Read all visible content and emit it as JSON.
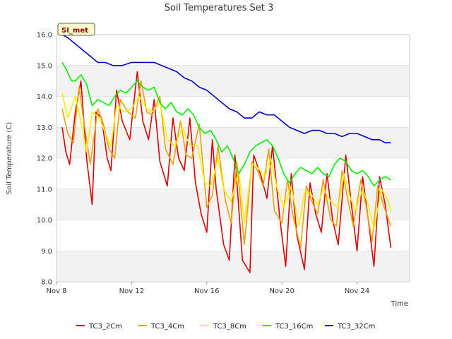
{
  "chart_data": {
    "type": "line",
    "title": "Soil Temperatures Set 3",
    "xlabel": "Time",
    "ylabel": "Soil Temperature (C)",
    "badge": "SI_met",
    "ylim": [
      8.0,
      16.0
    ],
    "xlim": [
      8.0,
      26.8
    ],
    "y_ticks": [
      "8.0",
      "9.0",
      "10.0",
      "11.0",
      "12.0",
      "13.0",
      "14.0",
      "15.0",
      "16.0"
    ],
    "x_ticks": [
      {
        "x": 8,
        "label": "Nov 8"
      },
      {
        "x": 12,
        "label": "Nov 12"
      },
      {
        "x": 16,
        "label": "Nov 16"
      },
      {
        "x": 20,
        "label": "Nov 20"
      },
      {
        "x": 24,
        "label": "Nov 24"
      }
    ],
    "grid": true,
    "legend_position": "bottom",
    "series": [
      {
        "name": "TC3_2Cm",
        "color": "#dd0000",
        "x": [
          8.3,
          8.5,
          8.7,
          9.0,
          9.3,
          9.6,
          9.9,
          10.1,
          10.4,
          10.7,
          10.9,
          11.2,
          11.5,
          11.9,
          12.3,
          12.6,
          12.9,
          13.2,
          13.5,
          13.9,
          14.2,
          14.5,
          14.8,
          15.1,
          15.4,
          15.7,
          16.0,
          16.3,
          16.5,
          16.9,
          17.2,
          17.5,
          17.9,
          18.3,
          18.5,
          18.9,
          19.2,
          19.5,
          19.9,
          20.2,
          20.5,
          20.8,
          21.2,
          21.5,
          21.8,
          22.1,
          22.4,
          22.7,
          23.0,
          23.4,
          23.7,
          24.0,
          24.3,
          24.6,
          24.9,
          25.2,
          25.5,
          25.8
        ],
        "values": [
          13.0,
          12.2,
          11.8,
          13.5,
          14.5,
          12.0,
          10.5,
          13.5,
          13.3,
          12.0,
          11.6,
          14.2,
          13.2,
          12.6,
          14.8,
          13.2,
          12.6,
          13.9,
          11.9,
          11.1,
          13.3,
          12.0,
          11.6,
          13.3,
          11.2,
          10.2,
          9.6,
          12.6,
          11.0,
          9.2,
          8.7,
          12.1,
          8.7,
          8.3,
          12.1,
          11.4,
          10.7,
          12.4,
          10.0,
          8.5,
          11.5,
          9.5,
          8.4,
          11.2,
          10.2,
          9.6,
          11.5,
          10.0,
          9.2,
          12.1,
          10.5,
          9.0,
          11.4,
          10.0,
          8.5,
          11.4,
          10.5,
          9.1
        ]
      },
      {
        "name": "TC3_4Cm",
        "color": "#f0a000",
        "x": [
          8.3,
          8.6,
          8.9,
          9.2,
          9.5,
          9.8,
          10.2,
          10.5,
          10.8,
          11.1,
          11.4,
          11.8,
          12.2,
          12.5,
          12.8,
          13.1,
          13.5,
          13.8,
          14.2,
          14.6,
          14.9,
          15.2,
          15.6,
          16.0,
          16.3,
          16.6,
          17.0,
          17.3,
          17.6,
          18.0,
          18.4,
          18.7,
          19.0,
          19.3,
          19.6,
          20.0,
          20.3,
          20.6,
          21.0,
          21.3,
          21.6,
          21.9,
          22.2,
          22.6,
          22.9,
          23.2,
          23.5,
          23.8,
          24.2,
          24.5,
          24.8,
          25.1,
          25.4,
          25.8
        ],
        "values": [
          13.6,
          12.8,
          12.5,
          14.3,
          13.0,
          11.8,
          13.6,
          13.1,
          12.3,
          12.0,
          13.9,
          13.5,
          13.3,
          14.5,
          13.5,
          13.4,
          14.0,
          12.3,
          11.8,
          13.2,
          12.1,
          12.0,
          13.1,
          10.4,
          10.8,
          12.4,
          10.6,
          9.9,
          11.9,
          9.2,
          11.9,
          11.6,
          11.1,
          12.3,
          10.3,
          9.9,
          11.3,
          10.1,
          9.1,
          11.1,
          10.6,
          10.2,
          11.3,
          10.0,
          9.8,
          11.6,
          10.7,
          9.8,
          11.3,
          10.4,
          9.3,
          11.1,
          10.5,
          9.8
        ]
      },
      {
        "name": "TC3_8Cm",
        "color": "#ffee00",
        "x": [
          8.3,
          8.6,
          9.0,
          9.3,
          9.6,
          9.9,
          10.3,
          10.6,
          10.9,
          11.2,
          11.6,
          12.0,
          12.4,
          12.8,
          13.1,
          13.5,
          13.9,
          14.3,
          14.7,
          15.1,
          15.5,
          15.9,
          16.2,
          16.6,
          16.9,
          17.3,
          17.7,
          18.0,
          18.4,
          18.7,
          19.1,
          19.4,
          19.8,
          20.1,
          20.5,
          20.9,
          21.2,
          21.5,
          21.9,
          22.2,
          22.6,
          23.0,
          23.3,
          23.6,
          23.9,
          24.3,
          24.6,
          24.9,
          25.3,
          25.6,
          25.8
        ],
        "values": [
          14.1,
          13.3,
          14.0,
          13.2,
          12.2,
          13.5,
          13.3,
          12.8,
          12.4,
          13.7,
          13.5,
          13.6,
          14.0,
          13.6,
          13.5,
          13.8,
          12.6,
          12.4,
          13.0,
          12.4,
          12.4,
          11.2,
          11.1,
          12.0,
          11.0,
          10.6,
          11.6,
          9.9,
          11.8,
          11.7,
          11.4,
          12.0,
          10.9,
          10.4,
          11.1,
          9.8,
          10.9,
          10.9,
          10.5,
          11.0,
          10.6,
          10.4,
          11.5,
          10.8,
          10.3,
          11.0,
          10.5,
          9.7,
          11.0,
          10.7,
          10.3
        ]
      },
      {
        "name": "TC3_16Cm",
        "color": "#00ee00",
        "x": [
          8.3,
          8.5,
          8.8,
          9.0,
          9.3,
          9.6,
          9.9,
          10.2,
          10.5,
          10.8,
          11.1,
          11.4,
          11.7,
          12.0,
          12.3,
          12.6,
          12.9,
          13.2,
          13.5,
          13.8,
          14.1,
          14.4,
          14.7,
          15.0,
          15.3,
          15.6,
          15.9,
          16.2,
          16.5,
          16.8,
          17.1,
          17.4,
          17.7,
          18.0,
          18.3,
          18.6,
          18.9,
          19.2,
          19.5,
          19.8,
          20.1,
          20.4,
          20.7,
          21.0,
          21.3,
          21.6,
          21.9,
          22.2,
          22.5,
          22.8,
          23.1,
          23.4,
          23.7,
          24.0,
          24.3,
          24.6,
          24.9,
          25.2,
          25.5,
          25.8
        ],
        "values": [
          15.1,
          14.9,
          14.5,
          14.5,
          14.7,
          14.4,
          13.7,
          13.9,
          13.8,
          13.7,
          14.0,
          14.2,
          14.1,
          14.3,
          14.5,
          14.3,
          14.2,
          14.3,
          13.8,
          13.6,
          13.8,
          13.5,
          13.4,
          13.6,
          13.4,
          13.0,
          12.8,
          12.9,
          12.6,
          12.2,
          12.4,
          12.0,
          11.5,
          11.8,
          12.2,
          12.4,
          12.5,
          12.6,
          12.4,
          12.0,
          11.5,
          11.2,
          11.5,
          11.7,
          11.6,
          11.5,
          11.7,
          11.5,
          11.4,
          11.8,
          12.0,
          11.9,
          11.6,
          11.5,
          11.6,
          11.4,
          11.1,
          11.3,
          11.4,
          11.3
        ]
      },
      {
        "name": "TC3_32Cm",
        "color": "#0000cc",
        "x": [
          8.3,
          8.6,
          9.0,
          9.4,
          9.8,
          10.2,
          10.6,
          11.0,
          11.5,
          12.0,
          12.4,
          12.8,
          13.2,
          13.6,
          14.0,
          14.4,
          14.8,
          15.2,
          15.6,
          16.0,
          16.4,
          16.8,
          17.2,
          17.6,
          18.0,
          18.4,
          18.8,
          19.2,
          19.6,
          20.0,
          20.4,
          20.8,
          21.2,
          21.6,
          22.0,
          22.4,
          22.8,
          23.2,
          23.6,
          24.0,
          24.4,
          24.8,
          25.2,
          25.5,
          25.8
        ],
        "values": [
          16.0,
          15.9,
          15.7,
          15.5,
          15.3,
          15.1,
          15.1,
          15.0,
          15.0,
          15.1,
          15.1,
          15.1,
          15.1,
          15.0,
          14.9,
          14.8,
          14.6,
          14.5,
          14.3,
          14.2,
          14.0,
          13.8,
          13.6,
          13.5,
          13.3,
          13.3,
          13.5,
          13.4,
          13.4,
          13.2,
          13.0,
          12.9,
          12.8,
          12.9,
          12.9,
          12.8,
          12.8,
          12.7,
          12.8,
          12.8,
          12.7,
          12.6,
          12.6,
          12.5,
          12.5
        ]
      }
    ]
  }
}
